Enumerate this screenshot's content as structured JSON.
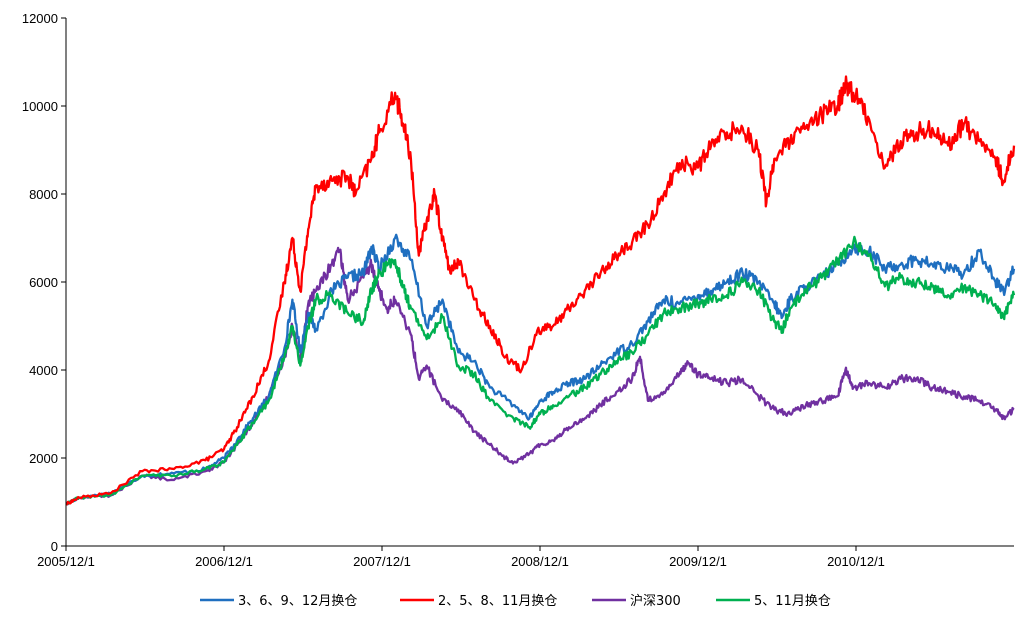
{
  "chart_data": {
    "type": "line",
    "title": "",
    "xlabel": "",
    "ylabel": "",
    "ylim": [
      0,
      12000
    ],
    "yticks": [
      "0",
      "2000",
      "4000",
      "6000",
      "8000",
      "10000",
      "12000"
    ],
    "xlim": [
      2005.917,
      2011.917
    ],
    "xticks": [
      {
        "label": "2005/12/1",
        "x": 2005.917
      },
      {
        "label": "2006/12/1",
        "x": 2006.917
      },
      {
        "label": "2007/12/1",
        "x": 2007.917
      },
      {
        "label": "2008/12/1",
        "x": 2008.917
      },
      {
        "label": "2009/12/1",
        "x": 2009.917
      },
      {
        "label": "2010/12/1",
        "x": 2010.917
      }
    ],
    "grid": false,
    "legend_position": "bottom",
    "series": [
      {
        "name": "3、6、9、12月换仓",
        "color": "#1f6fc0",
        "points": [
          [
            2005.917,
            950
          ],
          [
            2006.0,
            1100
          ],
          [
            2006.2,
            1200
          ],
          [
            2006.4,
            1600
          ],
          [
            2006.6,
            1650
          ],
          [
            2006.8,
            1750
          ],
          [
            2006.917,
            2000
          ],
          [
            2007.0,
            2400
          ],
          [
            2007.1,
            2900
          ],
          [
            2007.2,
            3400
          ],
          [
            2007.3,
            4500
          ],
          [
            2007.35,
            5600
          ],
          [
            2007.4,
            4400
          ],
          [
            2007.45,
            5300
          ],
          [
            2007.5,
            4900
          ],
          [
            2007.6,
            5800
          ],
          [
            2007.7,
            6100
          ],
          [
            2007.8,
            6200
          ],
          [
            2007.85,
            6800
          ],
          [
            2007.9,
            6300
          ],
          [
            2008.0,
            7000
          ],
          [
            2008.1,
            6500
          ],
          [
            2008.2,
            5000
          ],
          [
            2008.3,
            5600
          ],
          [
            2008.4,
            4400
          ],
          [
            2008.5,
            4200
          ],
          [
            2008.6,
            3600
          ],
          [
            2008.75,
            3200
          ],
          [
            2008.85,
            2900
          ],
          [
            2008.92,
            3300
          ],
          [
            2009.0,
            3500
          ],
          [
            2009.1,
            3700
          ],
          [
            2009.2,
            3800
          ],
          [
            2009.3,
            4100
          ],
          [
            2009.4,
            4400
          ],
          [
            2009.5,
            4600
          ],
          [
            2009.6,
            5100
          ],
          [
            2009.7,
            5600
          ],
          [
            2009.8,
            5500
          ],
          [
            2009.917,
            5700
          ],
          [
            2010.0,
            5800
          ],
          [
            2010.1,
            6000
          ],
          [
            2010.2,
            6200
          ],
          [
            2010.3,
            6000
          ],
          [
            2010.4,
            5500
          ],
          [
            2010.45,
            5200
          ],
          [
            2010.5,
            5600
          ],
          [
            2010.6,
            5900
          ],
          [
            2010.7,
            6100
          ],
          [
            2010.8,
            6400
          ],
          [
            2010.9,
            6800
          ],
          [
            2011.0,
            6700
          ],
          [
            2011.1,
            6300
          ],
          [
            2011.2,
            6400
          ],
          [
            2011.3,
            6500
          ],
          [
            2011.4,
            6400
          ],
          [
            2011.5,
            6300
          ],
          [
            2011.6,
            6200
          ],
          [
            2011.7,
            6700
          ],
          [
            2011.8,
            6000
          ],
          [
            2011.85,
            5800
          ],
          [
            2011.917,
            6300
          ]
        ]
      },
      {
        "name": "2、5、8、11月换仓",
        "color": "#ff0000",
        "points": [
          [
            2005.917,
            950
          ],
          [
            2006.0,
            1100
          ],
          [
            2006.2,
            1200
          ],
          [
            2006.4,
            1700
          ],
          [
            2006.6,
            1750
          ],
          [
            2006.8,
            1950
          ],
          [
            2006.917,
            2200
          ],
          [
            2007.0,
            2700
          ],
          [
            2007.1,
            3400
          ],
          [
            2007.2,
            4200
          ],
          [
            2007.3,
            6000
          ],
          [
            2007.35,
            7000
          ],
          [
            2007.4,
            5800
          ],
          [
            2007.45,
            7200
          ],
          [
            2007.5,
            8200
          ],
          [
            2007.6,
            8300
          ],
          [
            2007.7,
            8400
          ],
          [
            2007.75,
            8000
          ],
          [
            2007.85,
            8800
          ],
          [
            2007.9,
            9400
          ],
          [
            2008.0,
            10300
          ],
          [
            2008.05,
            9600
          ],
          [
            2008.1,
            8800
          ],
          [
            2008.15,
            6600
          ],
          [
            2008.2,
            7400
          ],
          [
            2008.25,
            8000
          ],
          [
            2008.3,
            7000
          ],
          [
            2008.35,
            6200
          ],
          [
            2008.4,
            6500
          ],
          [
            2008.5,
            5600
          ],
          [
            2008.6,
            5000
          ],
          [
            2008.7,
            4300
          ],
          [
            2008.8,
            4000
          ],
          [
            2008.9,
            4900
          ],
          [
            2009.0,
            5000
          ],
          [
            2009.1,
            5400
          ],
          [
            2009.2,
            5800
          ],
          [
            2009.3,
            6200
          ],
          [
            2009.4,
            6600
          ],
          [
            2009.5,
            6900
          ],
          [
            2009.6,
            7300
          ],
          [
            2009.7,
            8000
          ],
          [
            2009.8,
            8700
          ],
          [
            2009.917,
            8600
          ],
          [
            2010.0,
            9100
          ],
          [
            2010.1,
            9400
          ],
          [
            2010.2,
            9500
          ],
          [
            2010.3,
            9000
          ],
          [
            2010.35,
            7800
          ],
          [
            2010.4,
            8800
          ],
          [
            2010.5,
            9200
          ],
          [
            2010.6,
            9500
          ],
          [
            2010.7,
            9800
          ],
          [
            2010.8,
            10000
          ],
          [
            2010.85,
            10500
          ],
          [
            2010.9,
            10300
          ],
          [
            2011.0,
            9700
          ],
          [
            2011.1,
            8600
          ],
          [
            2011.2,
            9200
          ],
          [
            2011.3,
            9400
          ],
          [
            2011.4,
            9500
          ],
          [
            2011.5,
            9100
          ],
          [
            2011.6,
            9600
          ],
          [
            2011.7,
            9200
          ],
          [
            2011.8,
            8800
          ],
          [
            2011.85,
            8300
          ],
          [
            2011.917,
            9100
          ]
        ]
      },
      {
        "name": "沪深300",
        "color": "#7030a0",
        "points": [
          [
            2005.917,
            950
          ],
          [
            2006.0,
            1100
          ],
          [
            2006.2,
            1150
          ],
          [
            2006.4,
            1600
          ],
          [
            2006.6,
            1500
          ],
          [
            2006.8,
            1700
          ],
          [
            2006.917,
            1900
          ],
          [
            2007.0,
            2300
          ],
          [
            2007.1,
            2800
          ],
          [
            2007.2,
            3400
          ],
          [
            2007.3,
            4300
          ],
          [
            2007.35,
            5000
          ],
          [
            2007.4,
            4200
          ],
          [
            2007.45,
            5500
          ],
          [
            2007.5,
            5800
          ],
          [
            2007.6,
            6400
          ],
          [
            2007.65,
            6700
          ],
          [
            2007.7,
            5600
          ],
          [
            2007.8,
            6100
          ],
          [
            2007.85,
            6400
          ],
          [
            2007.9,
            5800
          ],
          [
            2007.95,
            5400
          ],
          [
            2008.0,
            5600
          ],
          [
            2008.1,
            4800
          ],
          [
            2008.15,
            3800
          ],
          [
            2008.2,
            4100
          ],
          [
            2008.3,
            3300
          ],
          [
            2008.4,
            3100
          ],
          [
            2008.5,
            2600
          ],
          [
            2008.6,
            2300
          ],
          [
            2008.7,
            2000
          ],
          [
            2008.75,
            1900
          ],
          [
            2008.85,
            2100
          ],
          [
            2008.917,
            2300
          ],
          [
            2009.0,
            2400
          ],
          [
            2009.1,
            2700
          ],
          [
            2009.2,
            2900
          ],
          [
            2009.3,
            3200
          ],
          [
            2009.4,
            3500
          ],
          [
            2009.5,
            3800
          ],
          [
            2009.55,
            4300
          ],
          [
            2009.6,
            3300
          ],
          [
            2009.7,
            3500
          ],
          [
            2009.8,
            3900
          ],
          [
            2009.85,
            4200
          ],
          [
            2009.917,
            3900
          ],
          [
            2010.0,
            3800
          ],
          [
            2010.1,
            3700
          ],
          [
            2010.2,
            3800
          ],
          [
            2010.3,
            3400
          ],
          [
            2010.4,
            3100
          ],
          [
            2010.5,
            3000
          ],
          [
            2010.6,
            3200
          ],
          [
            2010.7,
            3300
          ],
          [
            2010.8,
            3400
          ],
          [
            2010.85,
            4000
          ],
          [
            2010.9,
            3600
          ],
          [
            2011.0,
            3700
          ],
          [
            2011.1,
            3600
          ],
          [
            2011.2,
            3800
          ],
          [
            2011.3,
            3800
          ],
          [
            2011.4,
            3600
          ],
          [
            2011.5,
            3500
          ],
          [
            2011.6,
            3400
          ],
          [
            2011.7,
            3300
          ],
          [
            2011.8,
            3100
          ],
          [
            2011.85,
            2900
          ],
          [
            2011.917,
            3100
          ]
        ]
      },
      {
        "name": "5、11月换仓",
        "color": "#00b050",
        "points": [
          [
            2005.917,
            950
          ],
          [
            2006.0,
            1100
          ],
          [
            2006.2,
            1150
          ],
          [
            2006.4,
            1600
          ],
          [
            2006.6,
            1600
          ],
          [
            2006.8,
            1750
          ],
          [
            2006.917,
            1900
          ],
          [
            2007.0,
            2300
          ],
          [
            2007.1,
            2800
          ],
          [
            2007.2,
            3300
          ],
          [
            2007.3,
            4300
          ],
          [
            2007.35,
            5000
          ],
          [
            2007.4,
            4100
          ],
          [
            2007.45,
            5000
          ],
          [
            2007.5,
            5600
          ],
          [
            2007.6,
            5700
          ],
          [
            2007.7,
            5300
          ],
          [
            2007.8,
            5100
          ],
          [
            2007.85,
            5800
          ],
          [
            2007.9,
            6200
          ],
          [
            2008.0,
            6500
          ],
          [
            2008.05,
            5900
          ],
          [
            2008.1,
            5400
          ],
          [
            2008.2,
            4700
          ],
          [
            2008.3,
            5200
          ],
          [
            2008.4,
            4100
          ],
          [
            2008.5,
            3900
          ],
          [
            2008.6,
            3300
          ],
          [
            2008.75,
            2900
          ],
          [
            2008.85,
            2700
          ],
          [
            2008.917,
            3000
          ],
          [
            2009.0,
            3200
          ],
          [
            2009.1,
            3400
          ],
          [
            2009.2,
            3600
          ],
          [
            2009.3,
            3900
          ],
          [
            2009.4,
            4200
          ],
          [
            2009.5,
            4400
          ],
          [
            2009.6,
            4800
          ],
          [
            2009.7,
            5300
          ],
          [
            2009.8,
            5400
          ],
          [
            2009.917,
            5500
          ],
          [
            2010.0,
            5600
          ],
          [
            2010.1,
            5700
          ],
          [
            2010.2,
            6000
          ],
          [
            2010.3,
            5800
          ],
          [
            2010.4,
            5100
          ],
          [
            2010.45,
            4900
          ],
          [
            2010.5,
            5400
          ],
          [
            2010.6,
            5800
          ],
          [
            2010.7,
            6100
          ],
          [
            2010.8,
            6500
          ],
          [
            2010.9,
            6900
          ],
          [
            2011.0,
            6600
          ],
          [
            2011.1,
            5900
          ],
          [
            2011.2,
            6100
          ],
          [
            2011.3,
            6000
          ],
          [
            2011.4,
            5900
          ],
          [
            2011.5,
            5700
          ],
          [
            2011.6,
            5900
          ],
          [
            2011.7,
            5700
          ],
          [
            2011.8,
            5500
          ],
          [
            2011.85,
            5200
          ],
          [
            2011.917,
            5700
          ]
        ]
      }
    ]
  }
}
